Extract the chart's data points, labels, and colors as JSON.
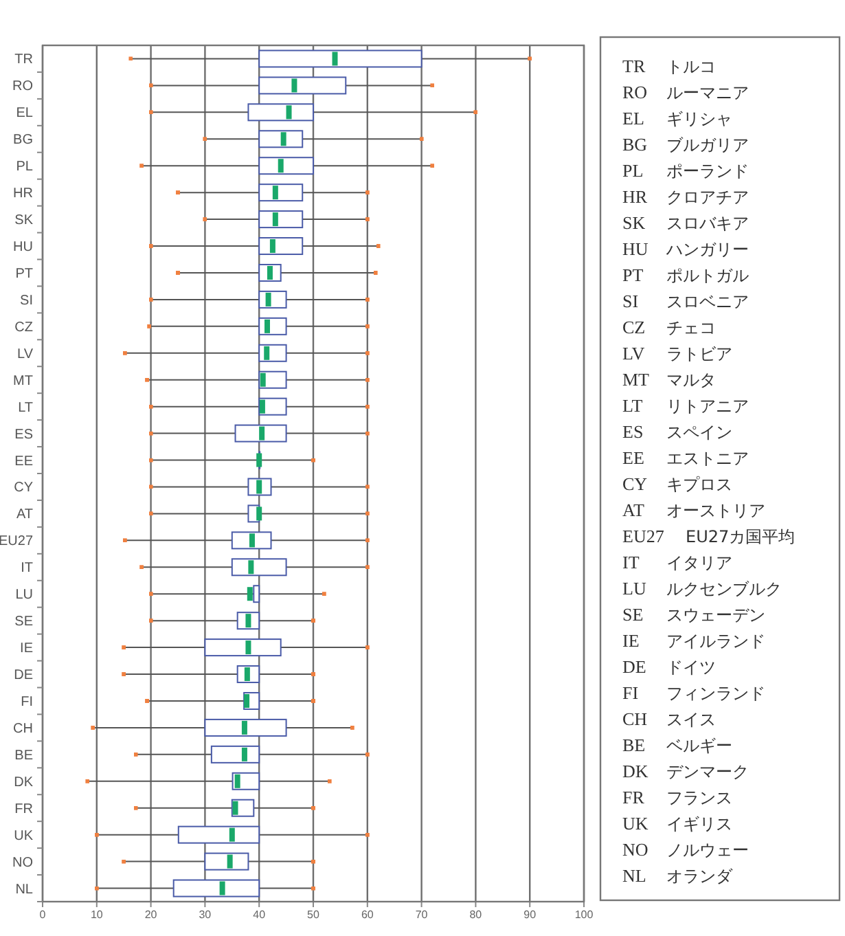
{
  "chart_data": [
    {
      "type": "box",
      "orientation": "horizontal",
      "grid": "x",
      "xlim": [
        0,
        100
      ],
      "xticks": [
        0,
        10,
        20,
        30,
        40,
        50,
        60,
        70,
        80,
        90,
        100
      ],
      "categories": [
        "TR",
        "RO",
        "EL",
        "BG",
        "PL",
        "HR",
        "SK",
        "HU",
        "PT",
        "SI",
        "CZ",
        "LV",
        "MT",
        "LT",
        "ES",
        "EE",
        "CY",
        "AT",
        "EU27",
        "IT",
        "LU",
        "SE",
        "IE",
        "DE",
        "FI",
        "CH",
        "BE",
        "DK",
        "FR",
        "UK",
        "NO",
        "NL"
      ],
      "series": [
        {
          "color": "#4a5ba8",
          "boxes": [
            {
              "low": 16.3,
              "q1": 40,
              "median": 54,
              "q3": 70,
              "high": 90
            },
            {
              "low": 20,
              "q1": 40,
              "median": 46.5,
              "q3": 56,
              "high": 72
            },
            {
              "low": 20,
              "q1": 38,
              "median": 45.5,
              "q3": 50,
              "high": 80
            },
            {
              "low": 30,
              "q1": 40,
              "median": 44.5,
              "q3": 48,
              "high": 70
            },
            {
              "low": 18.3,
              "q1": 40,
              "median": 44,
              "q3": 50,
              "high": 72
            },
            {
              "low": 25,
              "q1": 40,
              "median": 43,
              "q3": 48,
              "high": 60
            },
            {
              "low": 30,
              "q1": 40,
              "median": 43,
              "q3": 48,
              "high": 60
            },
            {
              "low": 20,
              "q1": 40,
              "median": 42.5,
              "q3": 48,
              "high": 62
            },
            {
              "low": 25,
              "q1": 40,
              "median": 42,
              "q3": 44,
              "high": 61.5
            },
            {
              "low": 20,
              "q1": 40,
              "median": 41.7,
              "q3": 45,
              "high": 60
            },
            {
              "low": 19.7,
              "q1": 40,
              "median": 41.5,
              "q3": 45,
              "high": 60
            },
            {
              "low": 15.2,
              "q1": 40,
              "median": 41.4,
              "q3": 45,
              "high": 60
            },
            {
              "low": 19.3,
              "q1": 40,
              "median": 40.7,
              "q3": 45,
              "high": 60
            },
            {
              "low": 20,
              "q1": 40,
              "median": 40.6,
              "q3": 45,
              "high": 60
            },
            {
              "low": 20,
              "q1": 35.6,
              "median": 40.5,
              "q3": 45,
              "high": 60
            },
            {
              "low": 20,
              "q1": 40,
              "median": 40,
              "q3": 40,
              "high": 50
            },
            {
              "low": 20,
              "q1": 38,
              "median": 40,
              "q3": 42.2,
              "high": 60
            },
            {
              "low": 20,
              "q1": 38,
              "median": 40,
              "q3": 40,
              "high": 60
            },
            {
              "low": 15.2,
              "q1": 35,
              "median": 38.7,
              "q3": 42.2,
              "high": 60
            },
            {
              "low": 18.3,
              "q1": 35,
              "median": 38.5,
              "q3": 45,
              "high": 60
            },
            {
              "low": 20,
              "q1": 39,
              "median": 38.3,
              "q3": 40,
              "high": 52
            },
            {
              "low": 20,
              "q1": 36,
              "median": 38,
              "q3": 40,
              "high": 50
            },
            {
              "low": 15,
              "q1": 30,
              "median": 38,
              "q3": 44,
              "high": 60
            },
            {
              "low": 15,
              "q1": 36,
              "median": 37.8,
              "q3": 40,
              "high": 50
            },
            {
              "low": 19.3,
              "q1": 37.2,
              "median": 37.7,
              "q3": 40,
              "high": 50
            },
            {
              "low": 9.3,
              "q1": 30,
              "median": 37.3,
              "q3": 45,
              "high": 57.2
            },
            {
              "low": 17.2,
              "q1": 31.2,
              "median": 37.3,
              "q3": 40,
              "high": 60
            },
            {
              "low": 8.3,
              "q1": 35.1,
              "median": 36,
              "q3": 40,
              "high": 53
            },
            {
              "low": 17.2,
              "q1": 35,
              "median": 35.6,
              "q3": 39,
              "high": 50
            },
            {
              "low": 10,
              "q1": 25.1,
              "median": 35,
              "q3": 40,
              "high": 60
            },
            {
              "low": 15,
              "q1": 30,
              "median": 34.6,
              "q3": 38,
              "high": 50
            },
            {
              "low": 10,
              "q1": 24.2,
              "median": 33.2,
              "q3": 40,
              "high": 50
            }
          ]
        }
      ]
    },
    {
      "type": "other",
      "annotations": [
        "TR",
        "トルコ",
        "RO",
        "ルーマニア",
        "EL",
        "ギリシャ",
        "BG",
        "ブルガリア",
        "PL",
        "ポーランド",
        "HR",
        "クロアチア",
        "SK",
        "スロバキア",
        "HU",
        "ハンガリー",
        "PT",
        "ポルトガル",
        "SI",
        "スロベニア",
        "CZ",
        "チェコ",
        "LV",
        "ラトビア",
        "MT",
        "マルタ",
        "LT",
        "リトアニア",
        "ES",
        "スペイン",
        "EE",
        "エストニア",
        "CY",
        "キプロス",
        "AT",
        "オーストリア",
        "EU27",
        "EU27カ国平均",
        "IT",
        "イタリア",
        "LU",
        "ルクセンブルク",
        "SE",
        "スウェーデン",
        "IE",
        "アイルランド",
        "DE",
        "ドイツ",
        "FI",
        "フィンランド",
        "CH",
        "スイス",
        "BE",
        "ベルギー",
        "DK",
        "デンマーク",
        "FR",
        "フランス",
        "UK",
        "イギリス",
        "NO",
        "ノルウェー",
        "NL",
        "オランダ"
      ]
    }
  ]
}
